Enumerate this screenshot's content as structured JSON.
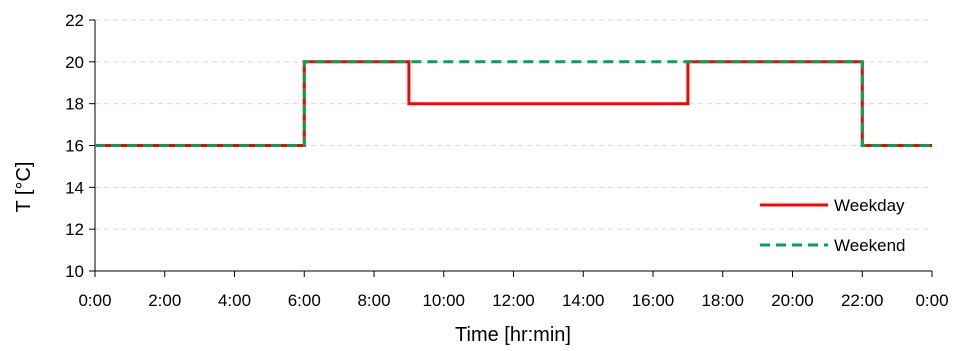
{
  "chart_data": {
    "type": "line",
    "title": "",
    "xlabel": "Time [hr:min]",
    "ylabel": "T [°C]",
    "xlim": [
      0,
      24
    ],
    "ylim": [
      10,
      22
    ],
    "x_ticks": [
      0,
      2,
      4,
      6,
      8,
      10,
      12,
      14,
      16,
      18,
      20,
      22,
      24
    ],
    "x_tick_labels": [
      "0:00",
      "2:00",
      "4:00",
      "6:00",
      "8:00",
      "10:00",
      "12:00",
      "14:00",
      "16:00",
      "18:00",
      "20:00",
      "22:00",
      "0:00"
    ],
    "y_ticks": [
      10,
      12,
      14,
      16,
      18,
      20,
      22
    ],
    "y_tick_labels": [
      "10",
      "12",
      "14",
      "16",
      "18",
      "20",
      "22"
    ],
    "grid": "horizontal dashed",
    "legend_position": "bottom-right",
    "series": [
      {
        "name": "Weekday",
        "color": "#ff0000",
        "style": "solid",
        "x": [
          0,
          6,
          6,
          9,
          9,
          17,
          17,
          22,
          22,
          24
        ],
        "y": [
          16,
          16,
          20,
          20,
          18,
          18,
          20,
          20,
          16,
          16
        ]
      },
      {
        "name": "Weekend",
        "color": "#00a650",
        "style": "dashed",
        "x": [
          0,
          6,
          6,
          22,
          22,
          24
        ],
        "y": [
          16,
          16,
          20,
          20,
          16,
          16
        ]
      }
    ]
  }
}
